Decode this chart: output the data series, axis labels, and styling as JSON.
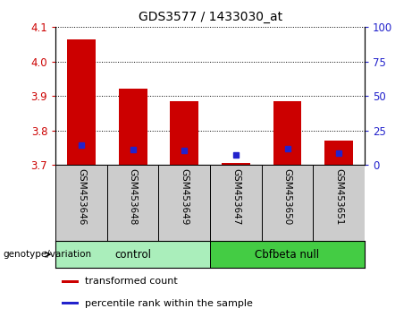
{
  "title": "GDS3577 / 1433030_at",
  "samples": [
    "GSM453646",
    "GSM453648",
    "GSM453649",
    "GSM453647",
    "GSM453650",
    "GSM453651"
  ],
  "bar_tops": [
    4.065,
    3.922,
    3.885,
    3.705,
    3.885,
    3.77
  ],
  "bar_bottom": 3.7,
  "percentile_values": [
    3.757,
    3.745,
    3.743,
    3.728,
    3.746,
    3.733
  ],
  "ylim_left": [
    3.7,
    4.1
  ],
  "ylim_right": [
    0,
    100
  ],
  "yticks_left": [
    3.7,
    3.8,
    3.9,
    4.0,
    4.1
  ],
  "yticks_right": [
    0,
    25,
    50,
    75,
    100
  ],
  "bar_color": "#CC0000",
  "blue_color": "#2222CC",
  "groups": [
    {
      "label": "control",
      "indices": [
        0,
        1,
        2
      ],
      "color": "#AAEEBB"
    },
    {
      "label": "Cbfbeta null",
      "indices": [
        3,
        4,
        5
      ],
      "color": "#44CC44"
    }
  ],
  "group_label": "genotype/variation",
  "legend_items": [
    {
      "label": "transformed count",
      "color": "#CC0000"
    },
    {
      "label": "percentile rank within the sample",
      "color": "#2222CC"
    }
  ],
  "tick_label_color_left": "#CC0000",
  "tick_label_color_right": "#2222CC",
  "bg_color": "#FFFFFF",
  "plot_bg": "#FFFFFF",
  "xtick_bg": "#CCCCCC",
  "bar_width": 0.55
}
